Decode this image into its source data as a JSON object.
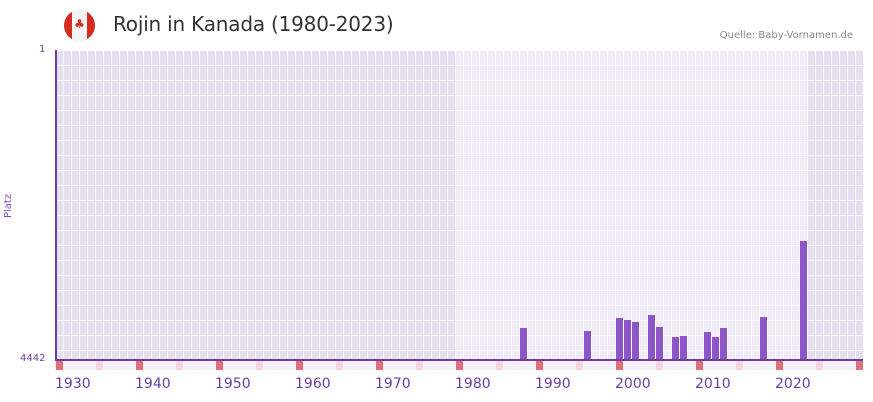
{
  "header": {
    "title": "Rojin in Kanada (1980-2023)",
    "source": "Quelle: Baby-Vornamen.de",
    "flag": "canada-flag-icon"
  },
  "chart_data": {
    "type": "bar",
    "title": "Rojin in Kanada (1980-2023)",
    "xlabel": "",
    "ylabel": "Platz",
    "ylim": [
      4442,
      1
    ],
    "y_ticks": [
      "1",
      "4442"
    ],
    "x_ticks": [
      "1930",
      "1940",
      "1950",
      "1960",
      "1970",
      "1980",
      "1990",
      "2000",
      "2010",
      "2020"
    ],
    "highlight_range": [
      1980,
      2023
    ],
    "categories": [
      "1988",
      "1996",
      "2000",
      "2001",
      "2002",
      "2004",
      "2005",
      "2007",
      "2008",
      "2011",
      "2012",
      "2013",
      "2018",
      "2023"
    ],
    "values": [
      3984,
      4027,
      3841,
      3870,
      3898,
      3798,
      3970,
      4113,
      4099,
      4042,
      4113,
      3984,
      3827,
      2734
    ],
    "grid": true,
    "legend": null,
    "colors": {
      "bar": "#8e55c7",
      "axis": "#6b3fa0",
      "decade_marker": "#e07077",
      "half_decade_marker": "#f3d6e0"
    }
  },
  "axis": {
    "y_top": "1",
    "y_bottom": "4442",
    "y_title": "Platz",
    "x_labels": [
      "1930",
      "1940",
      "1950",
      "1960",
      "1970",
      "1980",
      "1990",
      "2000",
      "2010",
      "2020"
    ]
  }
}
